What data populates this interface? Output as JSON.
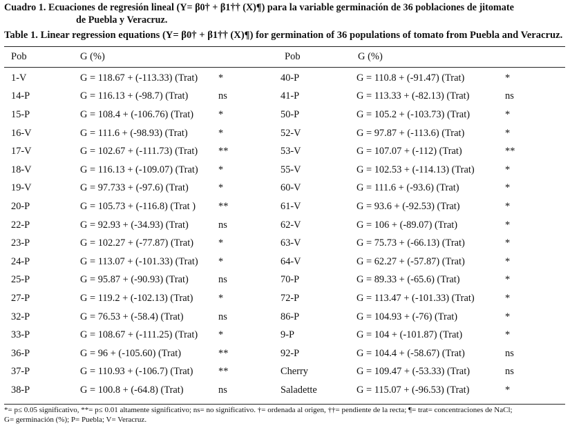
{
  "caption": {
    "es_line1": "Cuadro 1. Ecuaciones de regresión lineal (Y= β0† + β1†† (X)¶) para la variable germinación de 36 poblaciones de jitomate",
    "es_line2": "de Puebla y Veracruz.",
    "en": "Table 1. Linear regression equations (Y= β0† + β1†† (X)¶) for germination of 36 populations of tomato from Puebla and Veracruz."
  },
  "headers": {
    "pob": "Pob",
    "g": "G (%)"
  },
  "rows": [
    [
      "1-V",
      "G = 118.67 + (-113.33) (Trat)",
      "*",
      "40-P",
      "G = 110.8 + (-91.47) (Trat)",
      "*"
    ],
    [
      "14-P",
      "G = 116.13 + (-98.7) (Trat)",
      "ns",
      "41-P",
      "G = 113.33 + (-82.13) (Trat)",
      "ns"
    ],
    [
      "15-P",
      "G = 108.4 + (-106.76) (Trat)",
      "*",
      "50-P",
      "G = 105.2 + (-103.73) (Trat)",
      "*"
    ],
    [
      "16-V",
      "G = 111.6 + (-98.93) (Trat)",
      "*",
      "52-V",
      "G = 97.87 + (-113.6) (Trat)",
      "*"
    ],
    [
      "17-V",
      "G = 102.67 + (-111.73) (Trat)",
      "**",
      "53-V",
      "G = 107.07 + (-112) (Trat)",
      "**"
    ],
    [
      "18-V",
      "G = 116.13 + (-109.07) (Trat)",
      "*",
      "55-V",
      "G = 102.53 + (-114.13) (Trat)",
      "*"
    ],
    [
      "19-V",
      "G = 97.733 + (-97.6) (Trat)",
      "*",
      "60-V",
      "G = 111.6 + (-93.6) (Trat)",
      "*"
    ],
    [
      "20-P",
      "G = 105.73 + (-116.8) (Trat )",
      "**",
      "61-V",
      "G = 93.6 + (-92.53) (Trat)",
      "*"
    ],
    [
      "22-P",
      "G = 92.93 + (-34.93) (Trat)",
      "ns",
      "62-V",
      "G = 106 + (-89.07) (Trat)",
      "*"
    ],
    [
      "23-P",
      "G = 102.27 + (-77.87) (Trat)",
      "*",
      "63-V",
      "G = 75.73 + (-66.13) (Trat)",
      "*"
    ],
    [
      "24-P",
      "G = 113.07 + (-101.33) (Trat)",
      "*",
      "64-V",
      "G = 62.27 + (-57.87) (Trat)",
      "*"
    ],
    [
      "25-P",
      "G = 95.87 + (-90.93) (Trat)",
      "ns",
      "70-P",
      "G = 89.33 + (-65.6) (Trat)",
      "*"
    ],
    [
      "27-P",
      "G = 119.2 + (-102.13) (Trat)",
      "*",
      "72-P",
      "G = 113.47 + (-101.33) (Trat)",
      "*"
    ],
    [
      "32-P",
      "G = 76.53 + (-58.4) (Trat)",
      "ns",
      "86-P",
      "G = 104.93 + (-76) (Trat)",
      "*"
    ],
    [
      "33-P",
      "G = 108.67 + (-111.25) (Trat)",
      "*",
      "9-P",
      "G = 104 + (-101.87) (Trat)",
      "*"
    ],
    [
      "36-P",
      "G = 96 + (-105.60) (Trat)",
      "**",
      "92-P",
      "G = 104.4 + (-58.67) (Trat)",
      "ns"
    ],
    [
      "37-P",
      "G = 110.93 + (-106.7) (Trat)",
      "**",
      "Cherry",
      "G = 109.47 + (-53.33) (Trat)",
      "ns"
    ],
    [
      "38-P",
      "G = 100.8 + (-64.8) (Trat)",
      "ns",
      "Saladette",
      "G = 115.07 + (-96.53) (Trat)",
      "*"
    ]
  ],
  "footnote": {
    "line1": "*= p≤ 0.05 significativo, **= p≤ 0.01 altamente significativo; ns= no significativo. †= ordenada al origen, ††= pendiente de la recta; ¶= trat= concentraciones de NaCl;",
    "line2": "G= germinación (%); P= Puebla; V= Veracruz."
  }
}
